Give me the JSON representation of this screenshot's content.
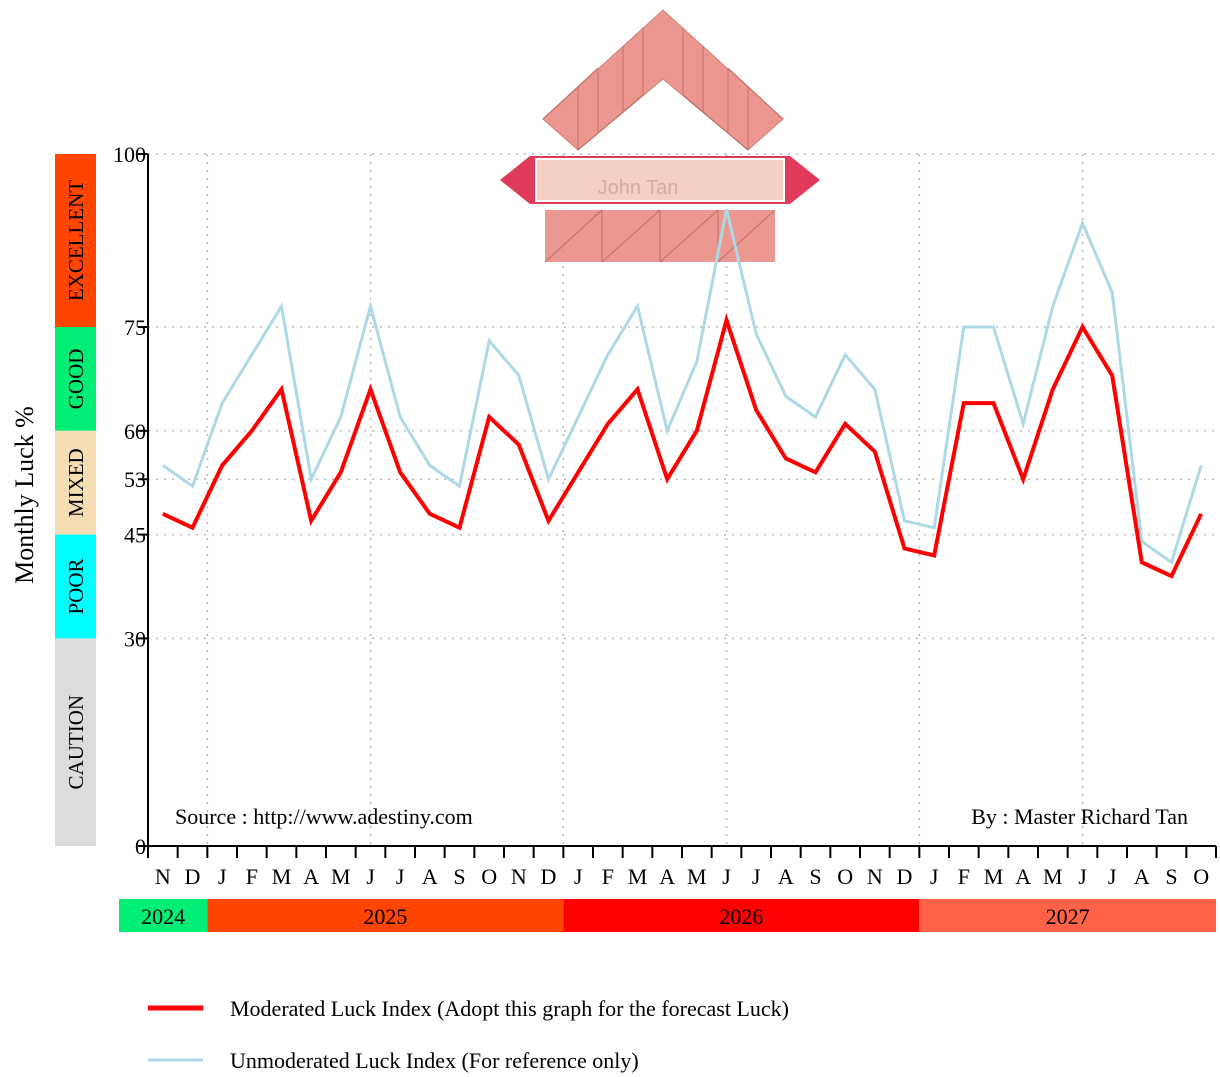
{
  "chart_data": {
    "type": "line",
    "ylabel": "Monthly Luck %",
    "ylim": [
      0,
      100
    ],
    "yticks": [
      0,
      30,
      45,
      53,
      60,
      75,
      100
    ],
    "x_month_labels": [
      "N",
      "D",
      "J",
      "F",
      "M",
      "A",
      "M",
      "J",
      "J",
      "A",
      "S",
      "O",
      "N",
      "D",
      "J",
      "F",
      "M",
      "A",
      "M",
      "J",
      "J",
      "A",
      "S",
      "O",
      "N",
      "D",
      "J",
      "F",
      "M",
      "A",
      "M",
      "J",
      "J",
      "A",
      "S",
      "O"
    ],
    "years": [
      {
        "label": "2024",
        "start": 0,
        "months": 2,
        "color": "#00ee76"
      },
      {
        "label": "2025",
        "start": 2,
        "months": 12,
        "color": "#ff4500"
      },
      {
        "label": "2026",
        "start": 14,
        "months": 12,
        "color": "#ff0000"
      },
      {
        "label": "2027",
        "start": 26,
        "months": 10,
        "color": "#ff6347"
      }
    ],
    "bands": [
      {
        "label": "EXCELLENT",
        "from": 75,
        "to": 100,
        "color": "#ff4500"
      },
      {
        "label": "GOOD",
        "from": 60,
        "to": 75,
        "color": "#00ee76"
      },
      {
        "label": "MIXED",
        "from": 45,
        "to": 60,
        "color": "#f5deb3"
      },
      {
        "label": "POOR",
        "from": 30,
        "to": 45,
        "color": "#00ffff"
      },
      {
        "label": "CAUTION",
        "from": 0,
        "to": 30,
        "color": "#dcdcdc"
      }
    ],
    "series": [
      {
        "name": "Moderated Luck Index (Adopt this graph for the forecast Luck)",
        "color": "#ff0000",
        "values": [
          48,
          46,
          55,
          60,
          66,
          47,
          54,
          66,
          54,
          48,
          46,
          62,
          58,
          47,
          54,
          61,
          66,
          53,
          60,
          76,
          63,
          56,
          54,
          61,
          57,
          43,
          42,
          64,
          64,
          53,
          66,
          75,
          68,
          41,
          39,
          48
        ]
      },
      {
        "name": "Unmoderated Luck Index (For reference only)",
        "color": "#add8e6",
        "values": [
          55,
          52,
          64,
          71,
          78,
          53,
          62,
          78,
          62,
          55,
          52,
          73,
          68,
          53,
          62,
          71,
          78,
          60,
          70,
          92,
          74,
          65,
          62,
          71,
          66,
          47,
          46,
          75,
          75,
          61,
          78,
          90,
          80,
          44,
          41,
          55
        ]
      }
    ]
  },
  "source_note": "Source : http://www.adestiny.com",
  "author_note": "By : Master Richard Tan",
  "logo": {
    "name_text": "John Tan"
  }
}
